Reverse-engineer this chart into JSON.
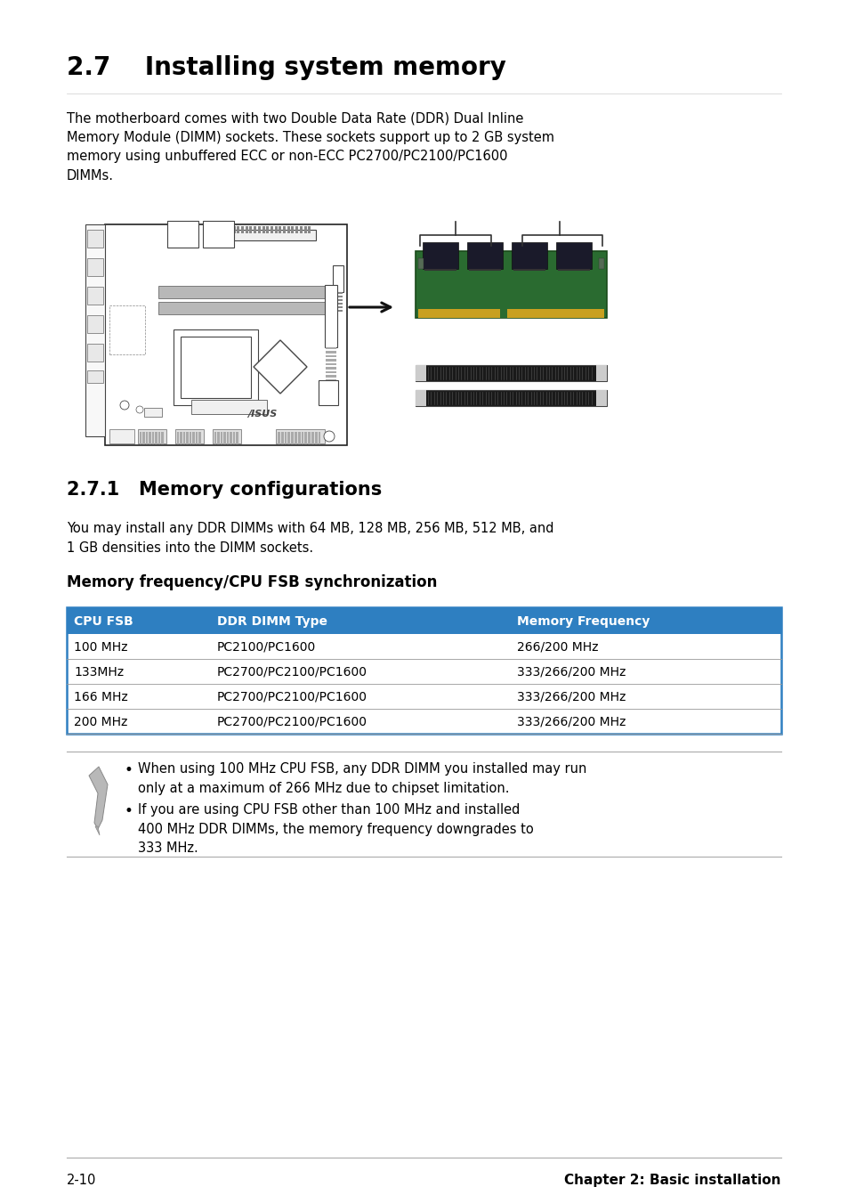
{
  "bg_color": "#ffffff",
  "title_main": "2.7    Installing system memory",
  "para1": "The motherboard comes with two Double Data Rate (DDR) Dual Inline\nMemory Module (DIMM) sockets. These sockets support up to 2 GB system\nmemory using unbuffered ECC or non-ECC PC2700/PC2100/PC1600\nDIMMs.",
  "section_title": "2.7.1   Memory configurations",
  "para2": "You may install any DDR DIMMs with 64 MB, 128 MB, 256 MB, 512 MB, and\n1 GB densities into the DIMM sockets.",
  "table_title": "Memory frequency/CPU FSB synchronization",
  "table_header": [
    "CPU FSB",
    "DDR DIMM Type",
    "Memory Frequency"
  ],
  "table_rows": [
    [
      "100 MHz",
      "PC2100/PC1600",
      "266/200 MHz"
    ],
    [
      "133MHz",
      "PC2700/PC2100/PC1600",
      "333/266/200 MHz"
    ],
    [
      "166 MHz",
      "PC2700/PC2100/PC1600",
      "333/266/200 MHz"
    ],
    [
      "200 MHz",
      "PC2700/PC2100/PC1600",
      "333/266/200 MHz"
    ]
  ],
  "table_header_bg": "#2e7fc1",
  "table_header_text": "#ffffff",
  "table_border": "#2e7fc1",
  "note_bullet1": "When using 100 MHz CPU FSB, any DDR DIMM you installed may run\nonly at a maximum of 266 MHz due to chipset limitation.",
  "note_bullet2": "If you are using CPU FSB other than 100 MHz and installed\n400 MHz DDR DIMMs, the memory frequency downgrades to\n333 MHz.",
  "footer_left": "2-10",
  "footer_right": "Chapter 2: Basic installation"
}
